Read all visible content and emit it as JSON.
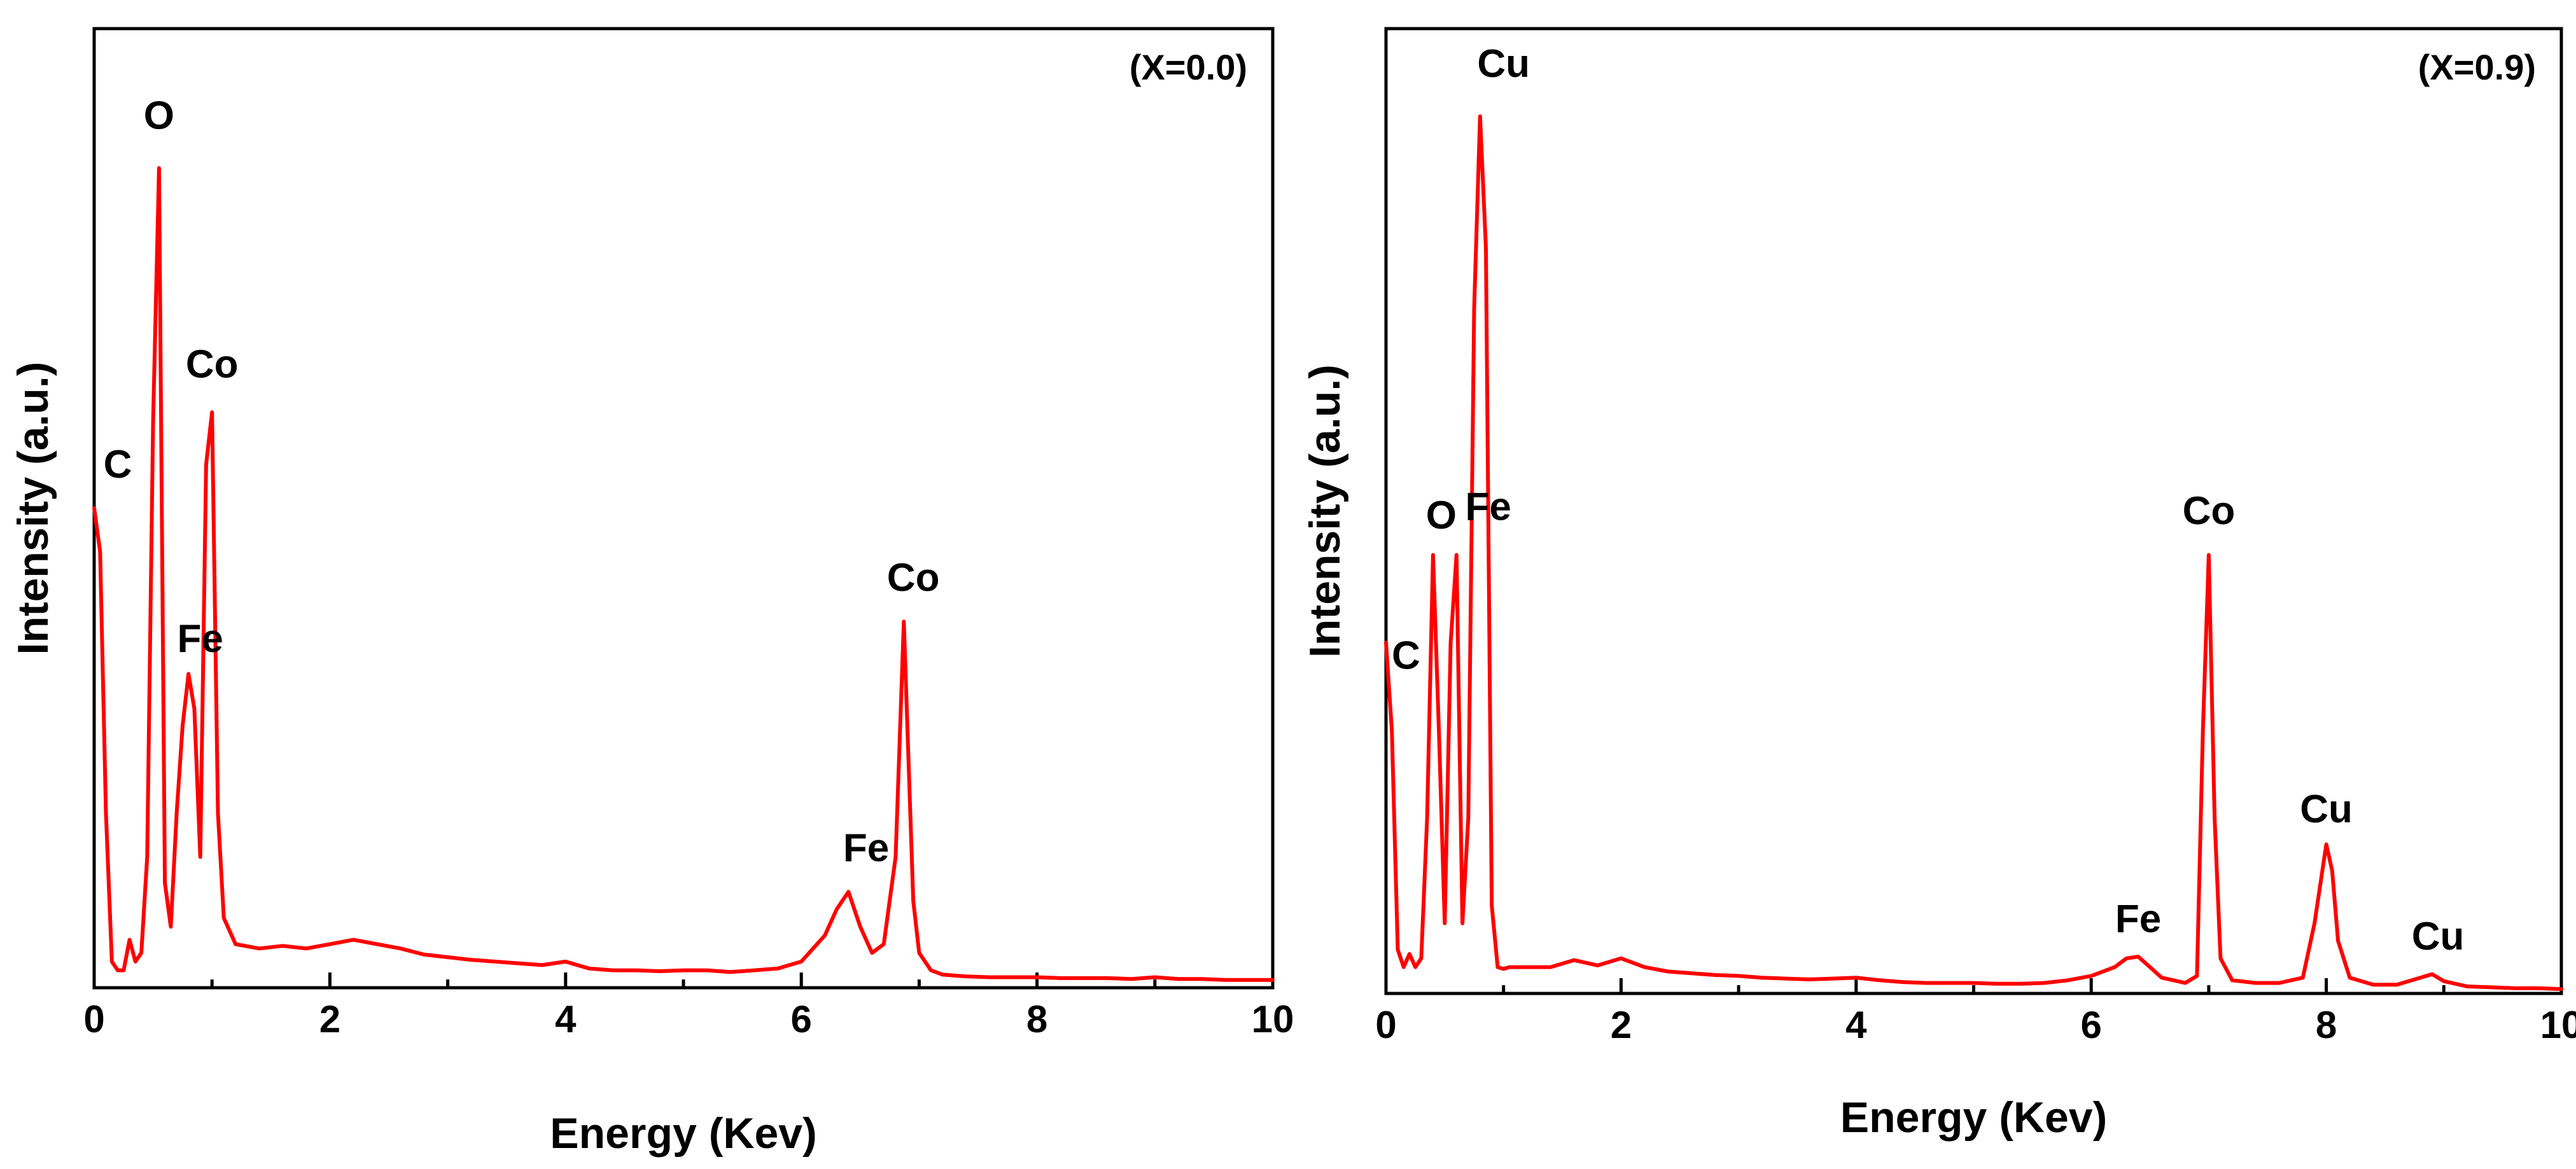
{
  "chart_data": [
    {
      "type": "line",
      "panel_label": "(X=0.0)",
      "xlabel": "Energy (Kev)",
      "ylabel": "Intensity (a.u.)",
      "xlim": [
        0,
        10
      ],
      "ylim": [
        0,
        1.1
      ],
      "xticks": [
        "0",
        "2",
        "4",
        "6",
        "8",
        "10"
      ],
      "yticks_shown": false,
      "grid": false,
      "color": "#ff0000",
      "series": [
        {
          "x": [
            0.0,
            0.05,
            0.1,
            0.15,
            0.2,
            0.25,
            0.3,
            0.35,
            0.4,
            0.45,
            0.5,
            0.55,
            0.6,
            0.65,
            0.7,
            0.75,
            0.8,
            0.85,
            0.9,
            0.95,
            1.0,
            1.05,
            1.1,
            1.2,
            1.4,
            1.6,
            1.8,
            2.0,
            2.2,
            2.4,
            2.6,
            2.8,
            3.0,
            3.2,
            3.4,
            3.6,
            3.8,
            4.0,
            4.2,
            4.4,
            4.6,
            4.8,
            5.0,
            5.2,
            5.4,
            5.6,
            5.8,
            6.0,
            6.2,
            6.3,
            6.4,
            6.5,
            6.6,
            6.7,
            6.8,
            6.87,
            6.95,
            7.0,
            7.1,
            7.2,
            7.4,
            7.6,
            7.8,
            8.0,
            8.2,
            8.4,
            8.6,
            8.8,
            9.0,
            9.2,
            9.4,
            9.6,
            9.8,
            10.0
          ],
          "y": [
            0.55,
            0.5,
            0.2,
            0.03,
            0.02,
            0.02,
            0.055,
            0.03,
            0.04,
            0.15,
            0.65,
            0.94,
            0.12,
            0.07,
            0.2,
            0.3,
            0.36,
            0.32,
            0.15,
            0.6,
            0.66,
            0.2,
            0.08,
            0.05,
            0.045,
            0.048,
            0.045,
            0.05,
            0.055,
            0.05,
            0.045,
            0.038,
            0.035,
            0.032,
            0.03,
            0.028,
            0.026,
            0.03,
            0.022,
            0.02,
            0.02,
            0.019,
            0.02,
            0.02,
            0.018,
            0.02,
            0.022,
            0.03,
            0.06,
            0.09,
            0.11,
            0.07,
            0.04,
            0.05,
            0.15,
            0.42,
            0.1,
            0.04,
            0.02,
            0.015,
            0.013,
            0.012,
            0.012,
            0.012,
            0.011,
            0.011,
            0.011,
            0.01,
            0.012,
            0.01,
            0.01,
            0.009,
            0.009,
            0.009
          ]
        }
      ],
      "peak_labels": [
        {
          "text": "O",
          "x": 0.55,
          "y": 0.985
        },
        {
          "text": "Co",
          "x": 1.0,
          "y": 0.7
        },
        {
          "text": "C",
          "x": 0.2,
          "y": 0.585
        },
        {
          "text": "Fe",
          "x": 0.9,
          "y": 0.385
        },
        {
          "text": "Co",
          "x": 6.95,
          "y": 0.455
        },
        {
          "text": "Fe",
          "x": 6.55,
          "y": 0.145
        }
      ]
    },
    {
      "type": "line",
      "panel_label": "(X=0.9)",
      "xlabel": "Energy (Kev)",
      "ylabel": "Intensity (a.u.)",
      "xlim": [
        0,
        10
      ],
      "ylim": [
        0,
        1.1
      ],
      "xticks": [
        "0",
        "2",
        "4",
        "6",
        "8",
        "10"
      ],
      "yticks_shown": false,
      "grid": false,
      "color": "#ff0000",
      "series": [
        {
          "x": [
            0.0,
            0.05,
            0.1,
            0.15,
            0.2,
            0.25,
            0.3,
            0.35,
            0.4,
            0.45,
            0.5,
            0.55,
            0.6,
            0.65,
            0.7,
            0.75,
            0.8,
            0.85,
            0.9,
            0.95,
            1.0,
            1.05,
            1.1,
            1.2,
            1.4,
            1.6,
            1.8,
            2.0,
            2.2,
            2.4,
            2.6,
            2.8,
            3.0,
            3.2,
            3.4,
            3.6,
            3.8,
            4.0,
            4.2,
            4.4,
            4.6,
            4.8,
            5.0,
            5.2,
            5.4,
            5.6,
            5.8,
            6.0,
            6.2,
            6.3,
            6.4,
            6.5,
            6.6,
            6.8,
            6.9,
            6.95,
            7.0,
            7.05,
            7.1,
            7.2,
            7.4,
            7.6,
            7.8,
            7.9,
            8.0,
            8.05,
            8.1,
            8.2,
            8.4,
            8.6,
            8.8,
            8.9,
            9.0,
            9.2,
            9.4,
            9.6,
            9.8,
            10.0
          ],
          "y": [
            0.4,
            0.3,
            0.05,
            0.03,
            0.045,
            0.03,
            0.04,
            0.2,
            0.5,
            0.3,
            0.08,
            0.4,
            0.5,
            0.08,
            0.2,
            0.78,
            1.0,
            0.85,
            0.1,
            0.03,
            0.028,
            0.03,
            0.03,
            0.03,
            0.03,
            0.038,
            0.032,
            0.04,
            0.03,
            0.025,
            0.023,
            0.021,
            0.02,
            0.018,
            0.017,
            0.016,
            0.017,
            0.018,
            0.015,
            0.013,
            0.012,
            0.012,
            0.012,
            0.011,
            0.011,
            0.012,
            0.015,
            0.02,
            0.03,
            0.04,
            0.042,
            0.03,
            0.018,
            0.012,
            0.02,
            0.3,
            0.5,
            0.2,
            0.04,
            0.015,
            0.012,
            0.012,
            0.018,
            0.08,
            0.17,
            0.14,
            0.06,
            0.018,
            0.01,
            0.01,
            0.018,
            0.022,
            0.014,
            0.008,
            0.007,
            0.006,
            0.006,
            0.005
          ]
        }
      ],
      "peak_labels": [
        {
          "text": "Cu",
          "x": 1.0,
          "y": 1.045
        },
        {
          "text": "O",
          "x": 0.47,
          "y": 0.53
        },
        {
          "text": "Fe",
          "x": 0.87,
          "y": 0.54
        },
        {
          "text": "C",
          "x": 0.17,
          "y": 0.37
        },
        {
          "text": "Co",
          "x": 7.0,
          "y": 0.535
        },
        {
          "text": "Cu",
          "x": 8.0,
          "y": 0.195
        },
        {
          "text": "Fe",
          "x": 6.4,
          "y": 0.07
        },
        {
          "text": "Cu",
          "x": 8.95,
          "y": 0.05
        }
      ]
    }
  ]
}
